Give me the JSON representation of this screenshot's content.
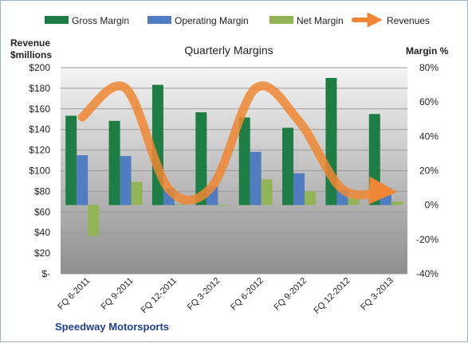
{
  "chart_data": {
    "type": "bar",
    "title": "Quarterly Margins",
    "company": "Speedway Motorsports",
    "left_axis_label": [
      "Revenue",
      "$millions"
    ],
    "right_axis_label": "Margin %",
    "categories": [
      "FQ 6-2011",
      "FQ 9-2011",
      "FQ 12-2011",
      "FQ 3-2012",
      "FQ 6-2012",
      "FQ 9-2012",
      "FQ 12-2012",
      "FQ 3-2013"
    ],
    "left_axis": {
      "min": 0,
      "max": 200,
      "step": 20,
      "ticks": [
        "$-",
        "$20",
        "$40",
        "$60",
        "$80",
        "$100",
        "$120",
        "$140",
        "$160",
        "$180",
        "$200"
      ]
    },
    "right_axis": {
      "min": -40,
      "max": 80,
      "step": 20,
      "ticks": [
        "-40%",
        "-20%",
        "0%",
        "20%",
        "40%",
        "60%",
        "80%"
      ]
    },
    "legend_position": "top",
    "grid": true,
    "series": [
      {
        "name": "Gross Margin",
        "kind": "bar",
        "axis": "right",
        "color": "#1e7d45",
        "values": [
          52.0,
          49.0,
          70.0,
          54.0,
          51.0,
          45.0,
          74.0,
          53.0
        ]
      },
      {
        "name": "Operating Margin",
        "kind": "bar",
        "axis": "right",
        "color": "#4f7dc0",
        "values": [
          29.0,
          28.5,
          9.5,
          11.0,
          31.0,
          18.5,
          9.0,
          10.0
        ]
      },
      {
        "name": "Net Margin",
        "kind": "bar",
        "axis": "right",
        "color": "#92b356",
        "values": [
          -18.0,
          13.5,
          0.5,
          -0.3,
          15.0,
          8.0,
          4.0,
          2.0
        ]
      },
      {
        "name": "Revenues",
        "kind": "line",
        "axis": "left",
        "color": "#ef8633",
        "values": [
          152.0,
          180.0,
          82.0,
          85.0,
          180.0,
          148.0,
          82.0,
          80.0
        ]
      }
    ]
  }
}
